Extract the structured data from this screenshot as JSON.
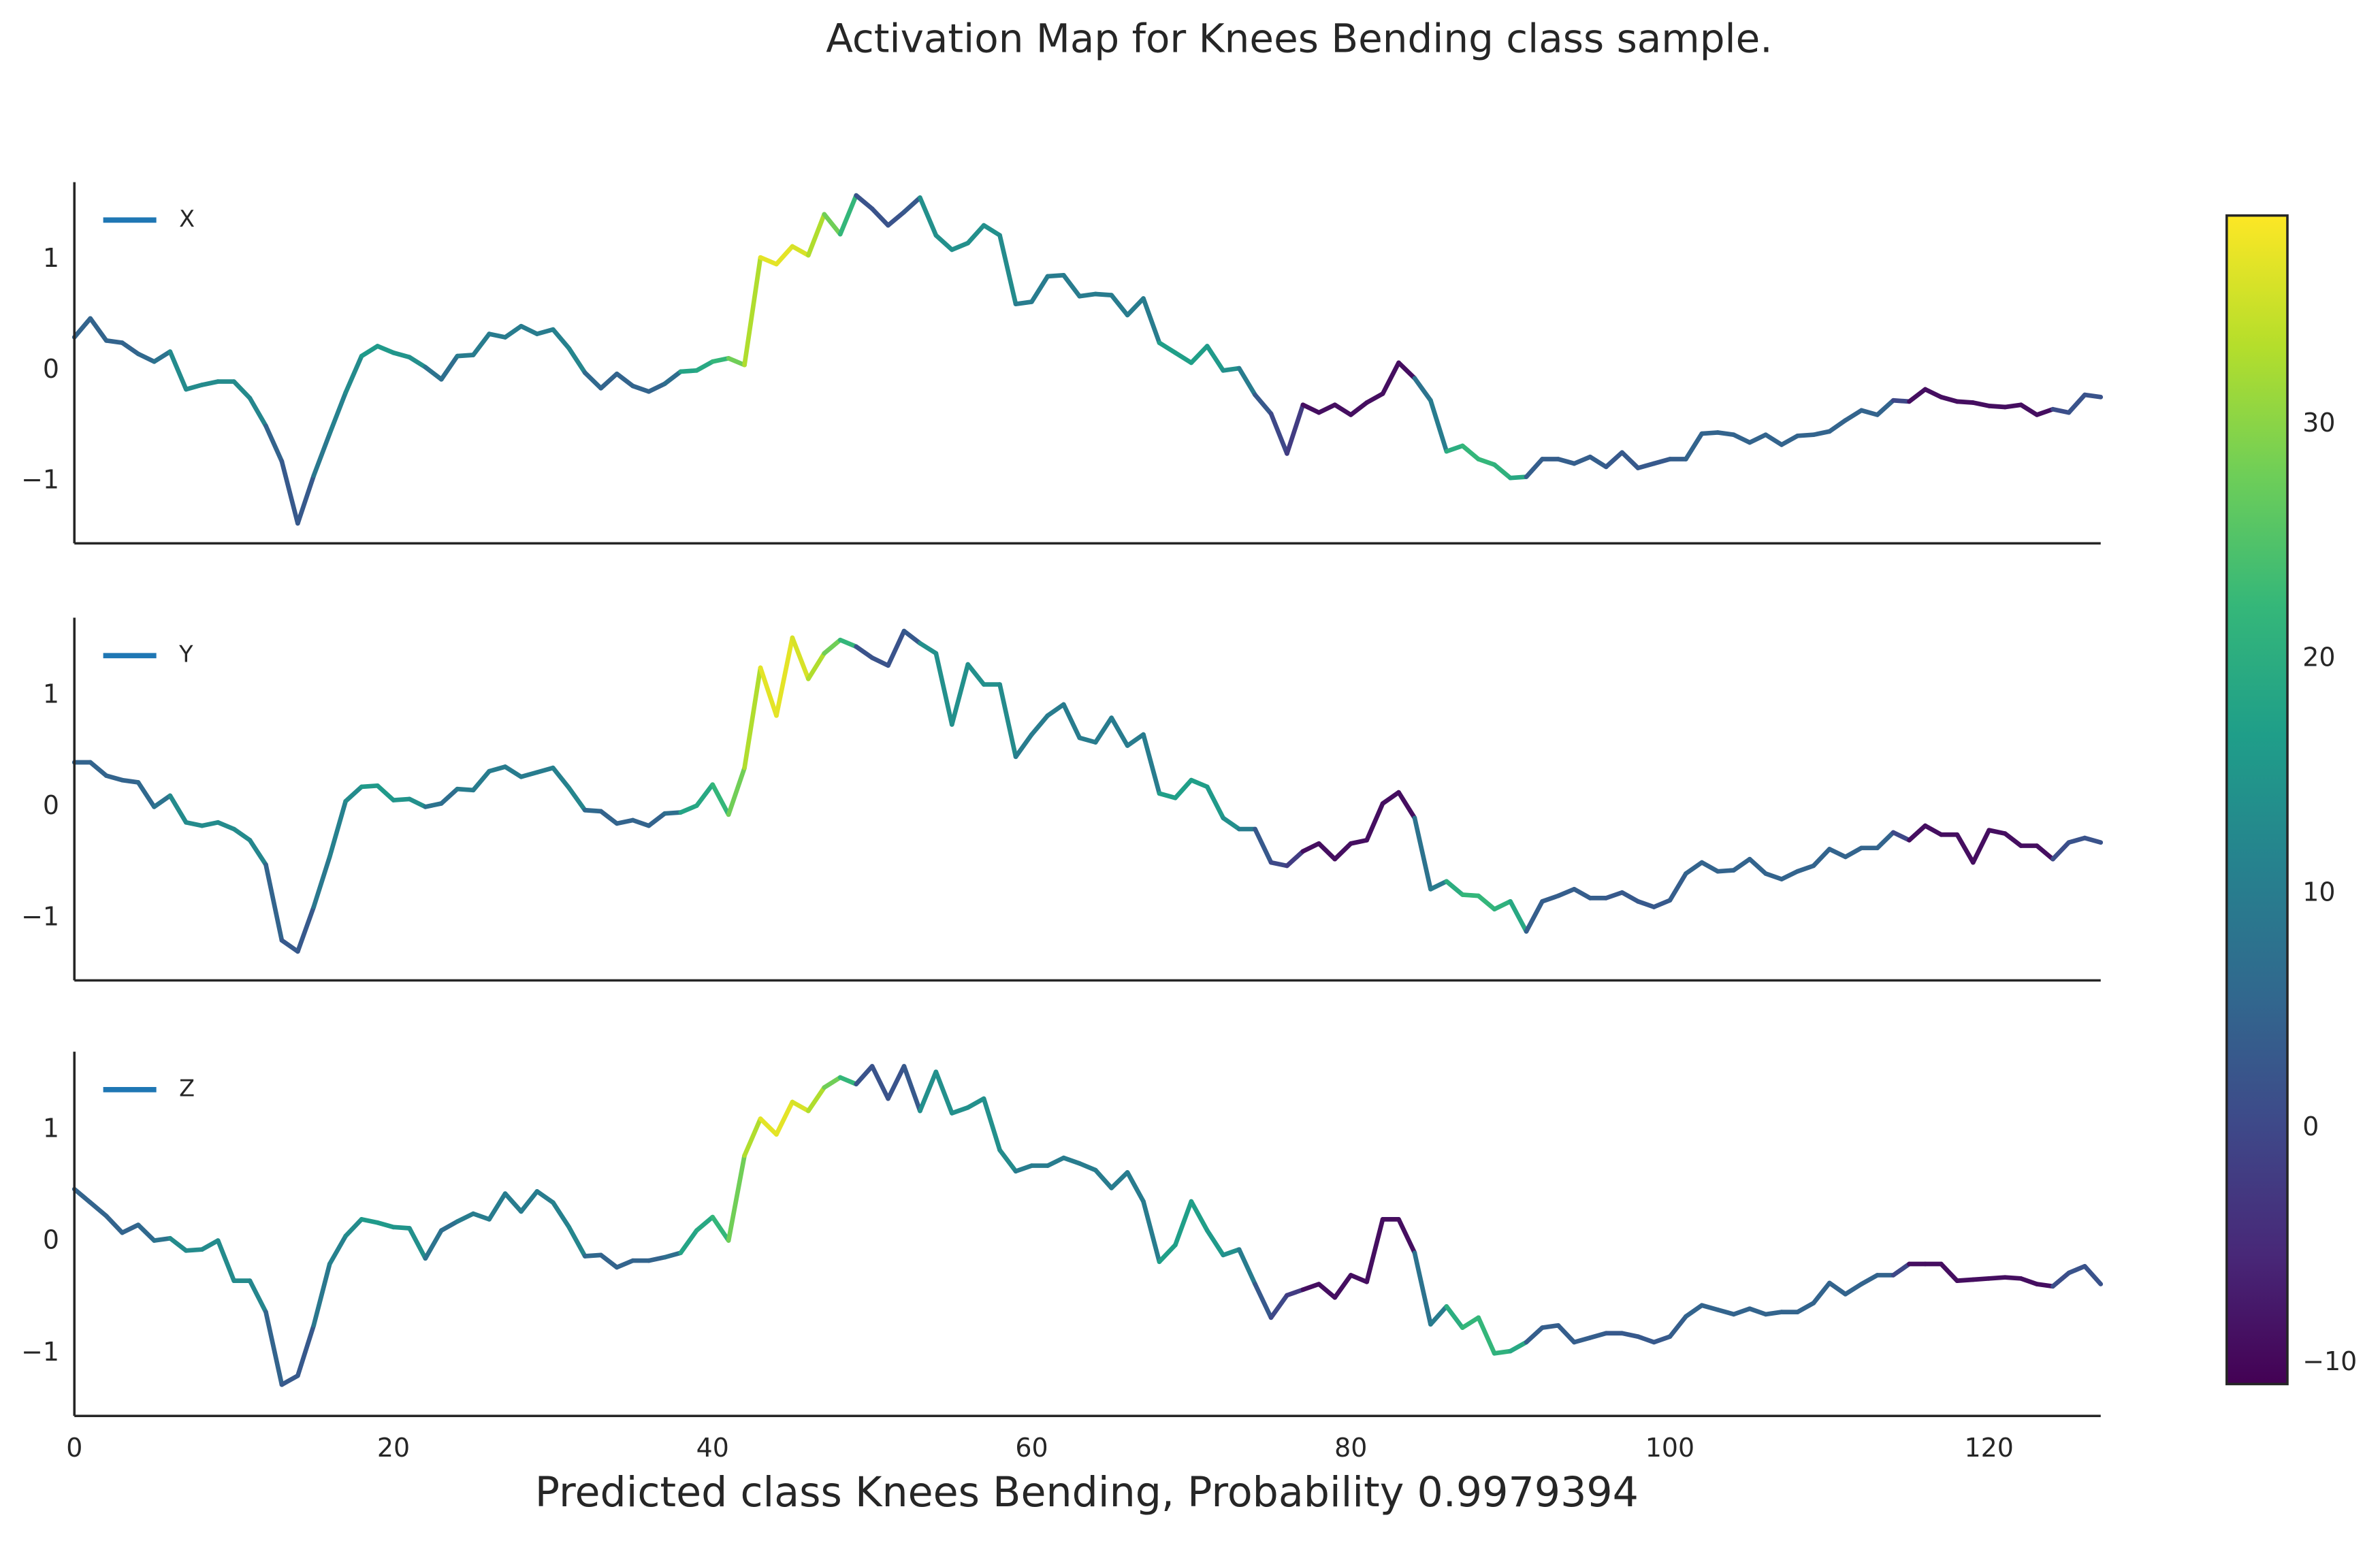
{
  "chart_data": {
    "type": "activation-line",
    "title": "Activation Map for Knees Bending class sample.",
    "xlabel": "Predicted class Knees Bending, Probability 0.9979394",
    "x": [
      0,
      1,
      2,
      3,
      4,
      5,
      6,
      7,
      8,
      9,
      10,
      11,
      12,
      13,
      14,
      15,
      16,
      17,
      18,
      19,
      20,
      21,
      22,
      23,
      24,
      25,
      26,
      27,
      28,
      29,
      30,
      31,
      32,
      33,
      34,
      35,
      36,
      37,
      38,
      39,
      40,
      41,
      42,
      43,
      44,
      45,
      46,
      47,
      48,
      49,
      50,
      51,
      52,
      53,
      54,
      55,
      56,
      57,
      58,
      59,
      60,
      61,
      62,
      63,
      64,
      65,
      66,
      67,
      68,
      69,
      70,
      71,
      72,
      73,
      74,
      75,
      76,
      77,
      78,
      79,
      80,
      81,
      82,
      83,
      84,
      85,
      86,
      87,
      88,
      89,
      90,
      91,
      92,
      93,
      94,
      95,
      96,
      97,
      98,
      99,
      100,
      101,
      102,
      103,
      104,
      105,
      106,
      107,
      108,
      109,
      110,
      111,
      112,
      113,
      114,
      115,
      116,
      117,
      118,
      119,
      120,
      121,
      122,
      123,
      124,
      125,
      126,
      127
    ],
    "xlim": [
      0,
      127
    ],
    "xticks": [
      0,
      20,
      40,
      60,
      80,
      100,
      120
    ],
    "ylim": [
      -1.56,
      1.7
    ],
    "yticks": [
      {
        "value": -1,
        "label": "−1"
      },
      0,
      1
    ],
    "grid": false,
    "legend": "upper left",
    "colormap": "viridis",
    "clim": [
      -10.9,
      38.9
    ],
    "cticks": [
      {
        "value": -10,
        "label": "−10"
      },
      0,
      10,
      20,
      30
    ],
    "activation": [
      5,
      5,
      5,
      5,
      6,
      8,
      13,
      13,
      13,
      13,
      13,
      12,
      5,
      3,
      3,
      9,
      11,
      13,
      16,
      16,
      15,
      14,
      8,
      7,
      10,
      10,
      10,
      10,
      10,
      10,
      11,
      12,
      6,
      5,
      5,
      5,
      5,
      7,
      18,
      19,
      22,
      28,
      33,
      37,
      37,
      36,
      33,
      28,
      22,
      2,
      2,
      2,
      3,
      14,
      14,
      14,
      14,
      14,
      13,
      10,
      10,
      10,
      10,
      10,
      10,
      10,
      10,
      10,
      17,
      17,
      17,
      16,
      14,
      10,
      3,
      0,
      -2,
      -9,
      -9,
      -9,
      -9,
      -9,
      -9,
      -9,
      8,
      10,
      20,
      22,
      22,
      21,
      19,
      4,
      4,
      4,
      4,
      4,
      3,
      3,
      3,
      3,
      4,
      5,
      5,
      5,
      5,
      5,
      5,
      5,
      5,
      5,
      5,
      5,
      5,
      5,
      0,
      -9,
      -9,
      -9,
      -9,
      -9,
      -9,
      -9,
      -9,
      -9,
      1,
      2,
      2,
      2
    ],
    "series": [
      {
        "name": "X",
        "color": "#1f77b4",
        "values": [
          0.3,
          0.47,
          0.27,
          0.25,
          0.15,
          0.08,
          0.17,
          -0.17,
          -0.13,
          -0.1,
          -0.1,
          -0.25,
          -0.5,
          -0.82,
          -1.38,
          -0.95,
          -0.57,
          -0.2,
          0.13,
          0.22,
          0.16,
          0.12,
          0.03,
          -0.08,
          0.13,
          0.14,
          0.33,
          0.3,
          0.4,
          0.33,
          0.37,
          0.2,
          -0.02,
          -0.16,
          -0.03,
          -0.14,
          -0.19,
          -0.12,
          -0.01,
          0.0,
          0.08,
          0.11,
          0.05,
          1.02,
          0.96,
          1.12,
          1.04,
          1.41,
          1.23,
          1.58,
          1.46,
          1.31,
          1.43,
          1.56,
          1.22,
          1.09,
          1.15,
          1.31,
          1.22,
          0.6,
          0.62,
          0.85,
          0.86,
          0.67,
          0.69,
          0.68,
          0.5,
          0.65,
          0.25,
          0.16,
          0.07,
          0.22,
          0.0,
          0.02,
          -0.22,
          -0.39,
          -0.75,
          -0.31,
          -0.38,
          -0.31,
          -0.4,
          -0.29,
          -0.21,
          0.07,
          -0.07,
          -0.27,
          -0.73,
          -0.68,
          -0.8,
          -0.85,
          -0.97,
          -0.96,
          -0.8,
          -0.8,
          -0.84,
          -0.78,
          -0.87,
          -0.74,
          -0.88,
          -0.84,
          -0.8,
          -0.8,
          -0.57,
          -0.56,
          -0.58,
          -0.65,
          -0.58,
          -0.67,
          -0.59,
          -0.58,
          -0.55,
          -0.45,
          -0.36,
          -0.4,
          -0.27,
          -0.28,
          -0.17,
          -0.24,
          -0.28,
          -0.29,
          -0.32,
          -0.33,
          -0.31,
          -0.4,
          -0.35,
          -0.38,
          -0.22,
          -0.24
        ]
      },
      {
        "name": "Y",
        "color": "#1f77b4",
        "values": [
          0.4,
          0.4,
          0.28,
          0.24,
          0.22,
          0.0,
          0.1,
          -0.14,
          -0.17,
          -0.14,
          -0.2,
          -0.3,
          -0.52,
          -1.2,
          -1.3,
          -0.9,
          -0.45,
          0.05,
          0.18,
          0.19,
          0.06,
          0.07,
          0.0,
          0.03,
          0.16,
          0.15,
          0.32,
          0.36,
          0.27,
          0.31,
          0.35,
          0.17,
          -0.03,
          -0.04,
          -0.15,
          -0.12,
          -0.17,
          -0.06,
          -0.05,
          0.01,
          0.2,
          -0.07,
          0.35,
          1.25,
          0.82,
          1.52,
          1.15,
          1.38,
          1.5,
          1.44,
          1.34,
          1.27,
          1.58,
          1.47,
          1.38,
          0.74,
          1.28,
          1.1,
          1.1,
          0.45,
          0.65,
          0.82,
          0.92,
          0.62,
          0.58,
          0.8,
          0.55,
          0.65,
          0.12,
          0.08,
          0.24,
          0.18,
          -0.1,
          -0.2,
          -0.2,
          -0.5,
          -0.53,
          -0.4,
          -0.33,
          -0.47,
          -0.33,
          -0.3,
          0.03,
          0.13,
          -0.1,
          -0.74,
          -0.67,
          -0.79,
          -0.8,
          -0.92,
          -0.85,
          -1.12,
          -0.85,
          -0.8,
          -0.74,
          -0.82,
          -0.82,
          -0.77,
          -0.85,
          -0.9,
          -0.84,
          -0.6,
          -0.5,
          -0.58,
          -0.57,
          -0.47,
          -0.6,
          -0.65,
          -0.58,
          -0.53,
          -0.38,
          -0.45,
          -0.37,
          -0.37,
          -0.23,
          -0.3,
          -0.17,
          -0.25,
          -0.25,
          -0.5,
          -0.21,
          -0.24,
          -0.35,
          -0.35,
          -0.47,
          -0.32,
          -0.28,
          -0.32
        ]
      },
      {
        "name": "Z",
        "color": "#1f77b4",
        "values": [
          0.47,
          0.35,
          0.23,
          0.08,
          0.15,
          0.01,
          0.03,
          -0.08,
          -0.07,
          0.01,
          -0.35,
          -0.35,
          -0.63,
          -1.28,
          -1.2,
          -0.75,
          -0.2,
          0.05,
          0.2,
          0.17,
          0.13,
          0.12,
          -0.15,
          0.1,
          0.18,
          0.25,
          0.2,
          0.43,
          0.27,
          0.45,
          0.35,
          0.13,
          -0.13,
          -0.12,
          -0.23,
          -0.17,
          -0.17,
          -0.14,
          -0.1,
          0.1,
          0.22,
          0.01,
          0.77,
          1.1,
          0.96,
          1.25,
          1.17,
          1.38,
          1.47,
          1.41,
          1.57,
          1.28,
          1.57,
          1.17,
          1.52,
          1.15,
          1.2,
          1.28,
          0.82,
          0.63,
          0.68,
          0.68,
          0.75,
          0.7,
          0.64,
          0.48,
          0.62,
          0.36,
          -0.18,
          -0.03,
          0.36,
          0.1,
          -0.12,
          -0.07,
          -0.38,
          -0.68,
          -0.48,
          -0.43,
          -0.38,
          -0.5,
          -0.3,
          -0.36,
          0.2,
          0.2,
          -0.1,
          -0.74,
          -0.58,
          -0.77,
          -0.68,
          -1.0,
          -0.98,
          -0.9,
          -0.77,
          -0.75,
          -0.9,
          -0.86,
          -0.82,
          -0.82,
          -0.85,
          -0.9,
          -0.85,
          -0.67,
          -0.57,
          -0.61,
          -0.65,
          -0.6,
          -0.65,
          -0.63,
          -0.63,
          -0.55,
          -0.37,
          -0.47,
          -0.38,
          -0.3,
          -0.3,
          -0.2,
          -0.2,
          -0.2,
          -0.35,
          -0.34,
          -0.33,
          -0.32,
          -0.33,
          -0.38,
          -0.4,
          -0.28,
          -0.22,
          -0.38
        ]
      }
    ]
  }
}
